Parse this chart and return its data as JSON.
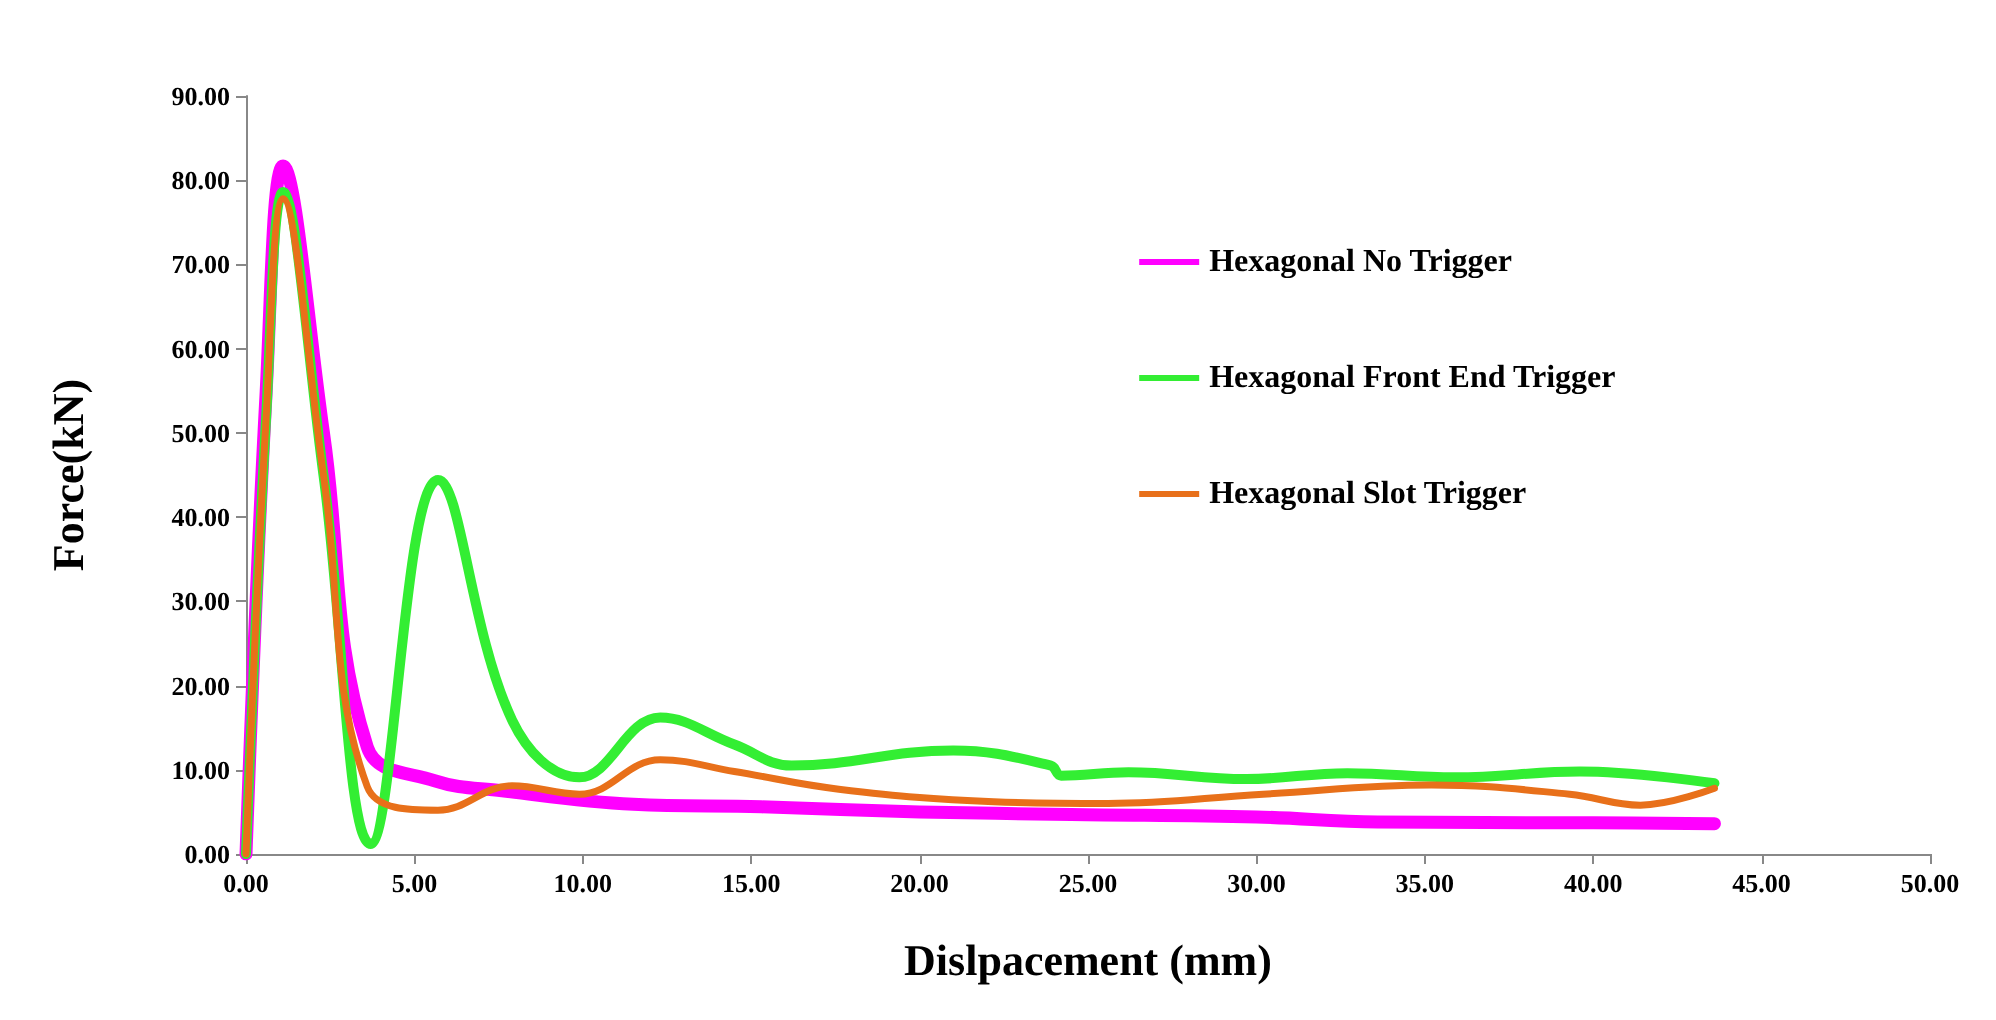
{
  "chart_data": {
    "type": "line",
    "xlabel": "Dislpacement (mm)",
    "ylabel": "Force(kN)",
    "xlim": [
      0,
      50
    ],
    "ylim": [
      0,
      90
    ],
    "xticks": [
      {
        "value": 0,
        "label": "0.00"
      },
      {
        "value": 5,
        "label": "5.00"
      },
      {
        "value": 10,
        "label": "10.00"
      },
      {
        "value": 15,
        "label": "15.00"
      },
      {
        "value": 20,
        "label": "20.00"
      },
      {
        "value": 25,
        "label": "25.00"
      },
      {
        "value": 30,
        "label": "30.00"
      },
      {
        "value": 35,
        "label": "35.00"
      },
      {
        "value": 40,
        "label": "40.00"
      },
      {
        "value": 45,
        "label": "45.00"
      },
      {
        "value": 50,
        "label": "50.00"
      }
    ],
    "yticks": [
      {
        "value": 0,
        "label": "0.00"
      },
      {
        "value": 10,
        "label": "10.00"
      },
      {
        "value": 20,
        "label": "20.00"
      },
      {
        "value": 30,
        "label": "30.00"
      },
      {
        "value": 40,
        "label": "40.00"
      },
      {
        "value": 50,
        "label": "50.00"
      },
      {
        "value": 60,
        "label": "60.00"
      },
      {
        "value": 70,
        "label": "70.00"
      },
      {
        "value": 80,
        "label": "80.00"
      },
      {
        "value": 90,
        "label": "90.00"
      }
    ],
    "grid": false,
    "legend": "top right",
    "marker": "none",
    "line_style": "solid",
    "series": [
      {
        "name": "Hexagonal No Trigger",
        "color": "#ff00ff",
        "x": [
          0,
          0.6,
          1.1,
          2.3,
          3.6,
          5.6,
          7.6,
          11.5,
          15.3,
          20,
          24.5,
          30,
          33.6,
          40,
          43.6
        ],
        "values": [
          0,
          55,
          81.7,
          50,
          12.7,
          8.7,
          7.5,
          5.9,
          5.6,
          5,
          4.7,
          4.4,
          3.8,
          3.7,
          3.6
        ]
      },
      {
        "name": "Hexagonal Front End Trigger",
        "color": "#33ee33",
        "x": [
          0,
          0.6,
          1.1,
          2.3,
          3.7,
          5.7,
          7.9,
          9.9,
          12.3,
          14.5,
          16.2,
          21,
          23.9,
          24.2,
          26.2,
          29.7,
          32.7,
          35.9,
          39.6,
          43.6
        ],
        "values": [
          0,
          52,
          78.6,
          45,
          1.2,
          44.4,
          15.9,
          9.1,
          16.2,
          13,
          10.5,
          12.3,
          10.5,
          9.3,
          9.7,
          8.9,
          9.6,
          9.1,
          9.8,
          8.4
        ]
      },
      {
        "name": "Hexagonal Slot Trigger",
        "color": "#e8701a",
        "x": [
          0,
          0.6,
          1.1,
          2.3,
          3.6,
          5.7,
          7.9,
          9.9,
          12.3,
          14.5,
          17.6,
          22.2,
          25.6,
          30.2,
          35.2,
          39.3,
          41.4,
          43.6
        ],
        "values": [
          0,
          52,
          77.8,
          45,
          8,
          5.2,
          8.1,
          7.1,
          11.2,
          9.8,
          7.7,
          6.2,
          6,
          7.1,
          8.2,
          7.1,
          5.8,
          7.8
        ]
      }
    ]
  }
}
